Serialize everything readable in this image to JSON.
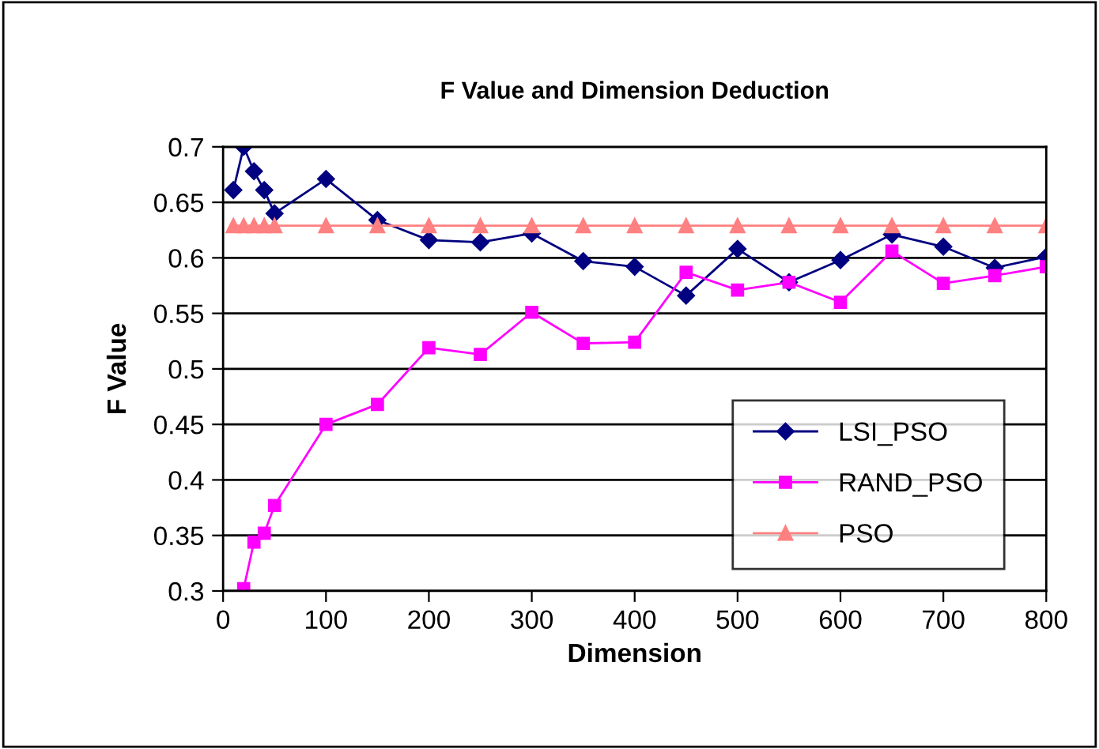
{
  "chart_data": {
    "type": "line",
    "title": "F Value and Dimension Deduction",
    "xlabel": "Dimension",
    "ylabel": "F Value",
    "xlim": [
      0,
      800
    ],
    "xticks": [
      0,
      100,
      200,
      300,
      400,
      500,
      600,
      700,
      800
    ],
    "ylim": [
      0.3,
      0.7
    ],
    "yticks": [
      0.3,
      0.35,
      0.4,
      0.45,
      0.5,
      0.55,
      0.6,
      0.65,
      0.7
    ],
    "grid": "y",
    "legend": "bottom right",
    "series": [
      {
        "name": "LSI_PSO",
        "color": "#000080",
        "marker": "diamond",
        "x": [
          10,
          20,
          30,
          40,
          50,
          100,
          150,
          200,
          250,
          300,
          350,
          400,
          450,
          500,
          550,
          600,
          650,
          700,
          750,
          800
        ],
        "values": [
          0.661,
          0.7,
          0.678,
          0.661,
          0.64,
          0.671,
          0.634,
          0.616,
          0.614,
          0.622,
          0.597,
          0.592,
          0.566,
          0.608,
          0.578,
          0.598,
          0.621,
          0.61,
          0.591,
          0.601
        ]
      },
      {
        "name": "RAND_PSO",
        "color": "#ff00ff",
        "marker": "square",
        "x": [
          20,
          30,
          40,
          50,
          100,
          150,
          200,
          250,
          300,
          350,
          400,
          450,
          500,
          550,
          600,
          650,
          700,
          750,
          800
        ],
        "values": [
          0.302,
          0.344,
          0.352,
          0.377,
          0.45,
          0.468,
          0.519,
          0.513,
          0.551,
          0.523,
          0.524,
          0.587,
          0.571,
          0.578,
          0.56,
          0.606,
          0.577,
          0.584,
          0.592
        ]
      },
      {
        "name": "PSO",
        "color": "#ff8080",
        "marker": "triangle",
        "x": [
          10,
          20,
          30,
          40,
          50,
          100,
          150,
          200,
          250,
          300,
          350,
          400,
          450,
          500,
          550,
          600,
          650,
          700,
          750,
          800
        ],
        "values": [
          0.629,
          0.629,
          0.629,
          0.629,
          0.629,
          0.629,
          0.629,
          0.629,
          0.629,
          0.629,
          0.629,
          0.629,
          0.629,
          0.629,
          0.629,
          0.629,
          0.629,
          0.629,
          0.629,
          0.629
        ]
      }
    ]
  }
}
